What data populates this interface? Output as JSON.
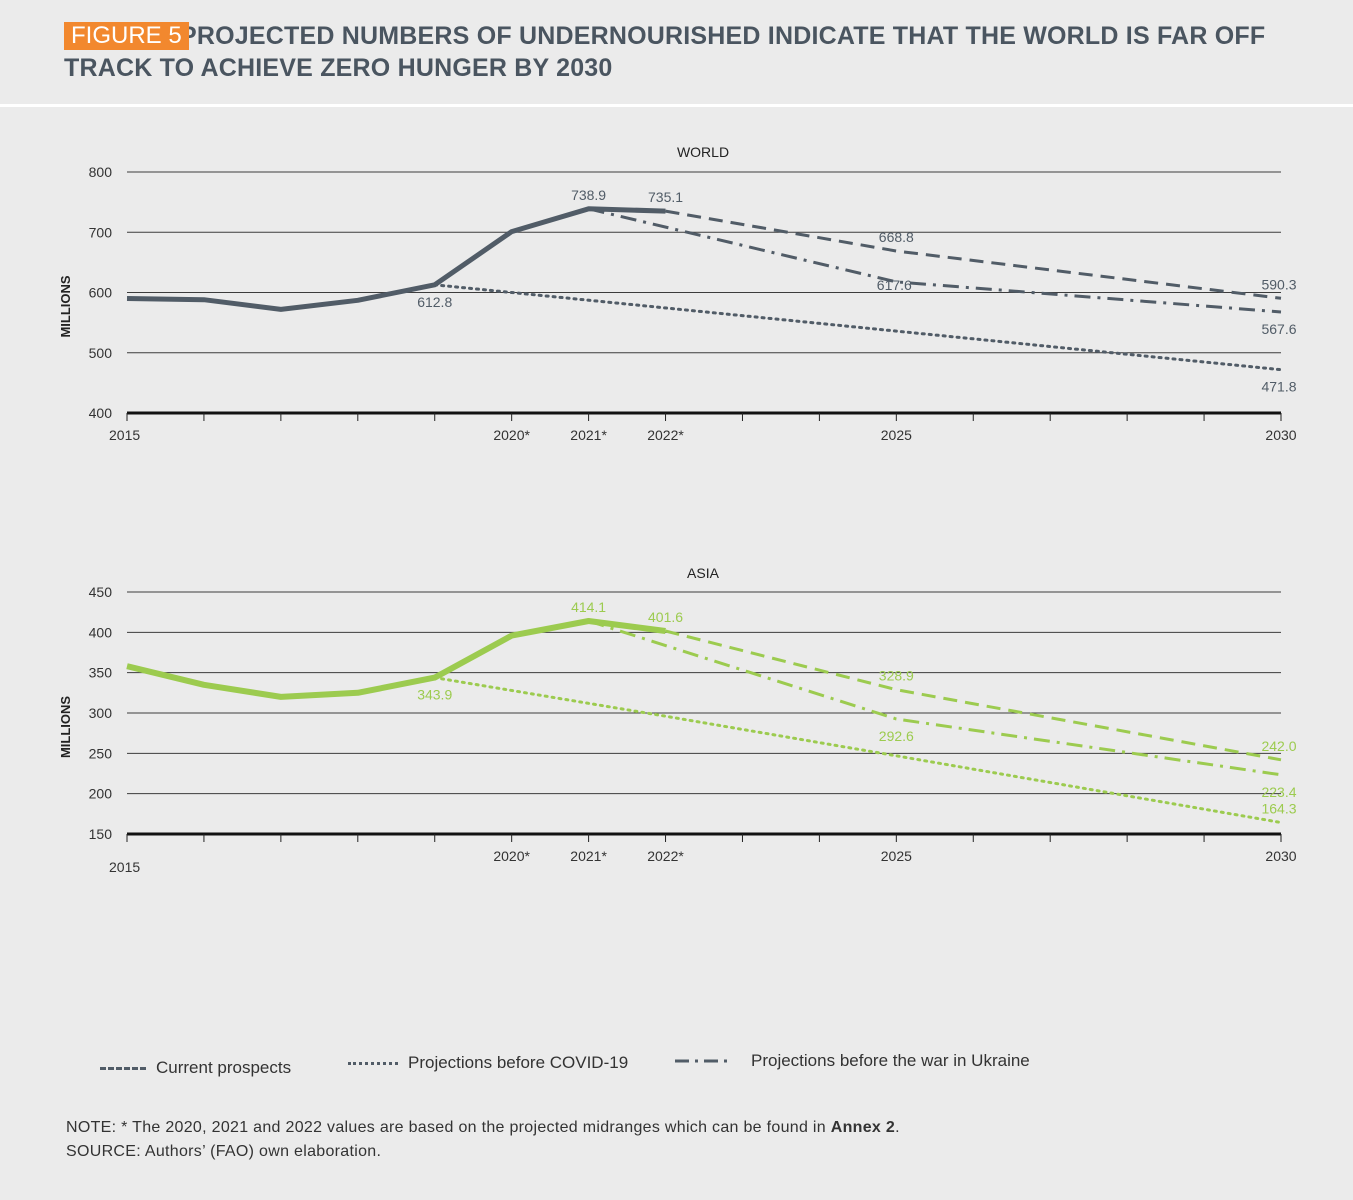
{
  "figure": {
    "badge": "FIGURE 5",
    "title": "PROJECTED NUMBERS OF UNDERNOURISHED INDICATE THAT THE WORLD IS FAR OFF TRACK TO ACHIEVE ZERO HUNGER BY 2030"
  },
  "colors": {
    "world": "#515c67",
    "asia": "#9ccb4f",
    "badge": "#f2882e",
    "title": "#4a5560"
  },
  "legend": {
    "current": "Current prospects",
    "covid": "Projections before COVID-19",
    "ukraine": "Projections before the war in Ukraine"
  },
  "note": {
    "prefix": "NOTE: * The 2020, 2021 and 2022 values are based on the projected midranges which can be found in ",
    "link": "Annex 2",
    "suffix": ".",
    "source": "SOURCE: Authors’ (FAO) own elaboration."
  },
  "chart_data": [
    {
      "type": "line",
      "title": "WORLD",
      "ylabel": "MILLIONS",
      "ylim": [
        400,
        800
      ],
      "yticks": [
        400,
        500,
        600,
        700,
        800
      ],
      "xlim": [
        2015,
        2030
      ],
      "xtick_labels": [
        {
          "x": 2015,
          "label": "2015"
        },
        {
          "x": 2020,
          "label": "2020*"
        },
        {
          "x": 2021,
          "label": "2021*"
        },
        {
          "x": 2022,
          "label": "2022*"
        },
        {
          "x": 2025,
          "label": "2025"
        },
        {
          "x": 2030,
          "label": "2030"
        }
      ],
      "series": [
        {
          "style": "solid",
          "points": [
            [
              2015,
              590
            ],
            [
              2016,
              588
            ],
            [
              2017,
              572
            ],
            [
              2018,
              587
            ],
            [
              2019,
              612.8
            ],
            [
              2020,
              701
            ],
            [
              2021,
              738.9
            ],
            [
              2022,
              735.1
            ]
          ]
        },
        {
          "name": "Current prospects",
          "style": "dashed",
          "points": [
            [
              2022,
              735.1
            ],
            [
              2025,
              668.8
            ],
            [
              2030,
              590.3
            ]
          ]
        },
        {
          "name": "Projections before COVID-19",
          "style": "dotted",
          "points": [
            [
              2019,
              612.8
            ],
            [
              2020,
              600
            ],
            [
              2025,
              536
            ],
            [
              2030,
              471.8
            ]
          ]
        },
        {
          "name": "Projections before the war in Ukraine",
          "style": "dashdot",
          "points": [
            [
              2021,
              738.9
            ],
            [
              2025,
              617.6
            ],
            [
              2030,
              567.6
            ]
          ]
        }
      ],
      "annotations": [
        {
          "x": 2019,
          "y": 612.8,
          "text": "612.8",
          "pos": "below"
        },
        {
          "x": 2021,
          "y": 738.9,
          "text": "738.9",
          "pos": "above"
        },
        {
          "x": 2022,
          "y": 735.1,
          "text": "735.1",
          "pos": "above"
        },
        {
          "x": 2025,
          "y": 668.8,
          "text": "668.8",
          "pos": "above"
        },
        {
          "x": 2025,
          "y": 617.6,
          "text": "617.6",
          "pos": "right"
        },
        {
          "x": 2030,
          "y": 590.3,
          "text": "590.3",
          "pos": "above"
        },
        {
          "x": 2030,
          "y": 567.6,
          "text": "567.6",
          "pos": "below"
        },
        {
          "x": 2030,
          "y": 471.8,
          "text": "471.8",
          "pos": "below"
        }
      ]
    },
    {
      "type": "line",
      "title": "ASIA",
      "ylabel": "MILLIONS",
      "ylim": [
        150,
        450
      ],
      "yticks": [
        150,
        200,
        250,
        300,
        350,
        400,
        450
      ],
      "xlim": [
        2015,
        2030
      ],
      "xtick_labels": [
        {
          "x": 2015,
          "label": "2015"
        },
        {
          "x": 2020,
          "label": "2020*"
        },
        {
          "x": 2021,
          "label": "2021*"
        },
        {
          "x": 2022,
          "label": "2022*"
        },
        {
          "x": 2025,
          "label": "2025"
        },
        {
          "x": 2030,
          "label": "2030"
        }
      ],
      "series": [
        {
          "style": "solid",
          "points": [
            [
              2015,
              358
            ],
            [
              2016,
              335
            ],
            [
              2017,
              320
            ],
            [
              2018,
              325
            ],
            [
              2019,
              343.9
            ],
            [
              2020,
              396
            ],
            [
              2021,
              414.1
            ],
            [
              2022,
              401.6
            ]
          ]
        },
        {
          "name": "Current prospects",
          "style": "dashed",
          "points": [
            [
              2022,
              401.6
            ],
            [
              2025,
              328.9
            ],
            [
              2030,
              242.0
            ]
          ]
        },
        {
          "name": "Projections before COVID-19",
          "style": "dotted",
          "points": [
            [
              2019,
              343.9
            ],
            [
              2022,
              296
            ],
            [
              2025,
              247
            ],
            [
              2030,
              164.3
            ]
          ]
        },
        {
          "name": "Projections before the war in Ukraine",
          "style": "dashdot",
          "points": [
            [
              2021,
              414.1
            ],
            [
              2025,
              292.6
            ],
            [
              2030,
              223.4
            ]
          ]
        }
      ],
      "annotations": [
        {
          "x": 2019,
          "y": 343.9,
          "text": "343.9",
          "pos": "below"
        },
        {
          "x": 2021,
          "y": 414.1,
          "text": "414.1",
          "pos": "above"
        },
        {
          "x": 2022,
          "y": 401.6,
          "text": "401.6",
          "pos": "above"
        },
        {
          "x": 2025,
          "y": 328.9,
          "text": "328.9",
          "pos": "above"
        },
        {
          "x": 2025,
          "y": 292.6,
          "text": "292.6",
          "pos": "below"
        },
        {
          "x": 2030,
          "y": 242.0,
          "text": "242.0",
          "pos": "above"
        },
        {
          "x": 2030,
          "y": 223.4,
          "text": "223.4",
          "pos": "below"
        },
        {
          "x": 2030,
          "y": 164.3,
          "text": "164.3",
          "pos": "above"
        }
      ]
    }
  ]
}
